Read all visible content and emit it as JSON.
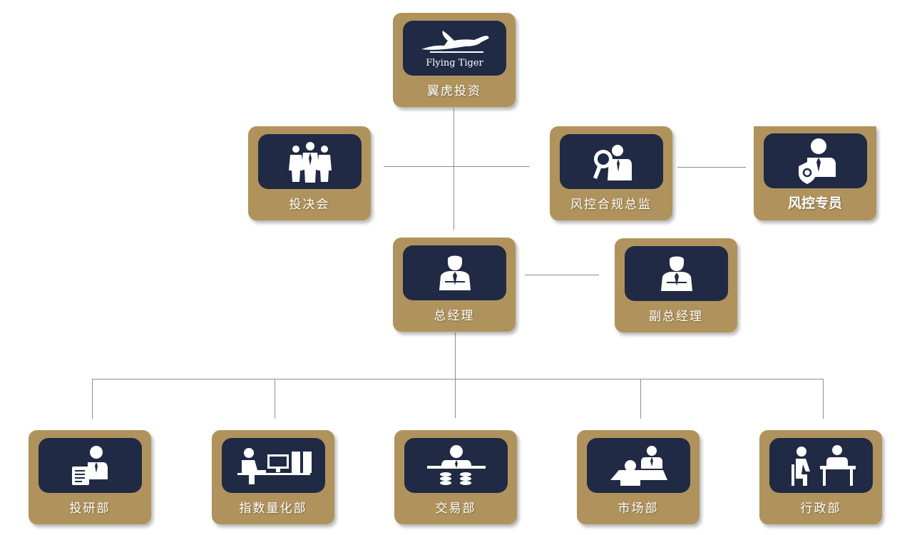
{
  "nodes": {
    "company": {
      "label": "翼虎投资",
      "logo_text": "Flying Tiger",
      "icon": "flying-tiger-logo"
    },
    "investment_committee": {
      "label": "投决会",
      "icon": "team-icon"
    },
    "risk_director": {
      "label": "风控合规总监",
      "icon": "magnifier-person-icon"
    },
    "risk_officer": {
      "label": "风控专员",
      "icon": "shield-person-icon"
    },
    "general_manager": {
      "label": "总经理",
      "icon": "manager-icon"
    },
    "deputy_gm": {
      "label": "副总经理",
      "icon": "manager-icon"
    },
    "research_dept": {
      "label": "投研部",
      "icon": "analyst-report-icon"
    },
    "quant_dept": {
      "label": "指数量化部",
      "icon": "computer-workstation-icon"
    },
    "trading_dept": {
      "label": "交易部",
      "icon": "coins-trader-icon"
    },
    "marketing_dept": {
      "label": "市场部",
      "icon": "meeting-icon"
    },
    "admin_dept": {
      "label": "行政部",
      "icon": "office-desk-icon"
    }
  },
  "colors": {
    "card": "#b0935c",
    "panel": "#202a44",
    "connector": "#8e8e8e",
    "text": "#ffffff"
  }
}
